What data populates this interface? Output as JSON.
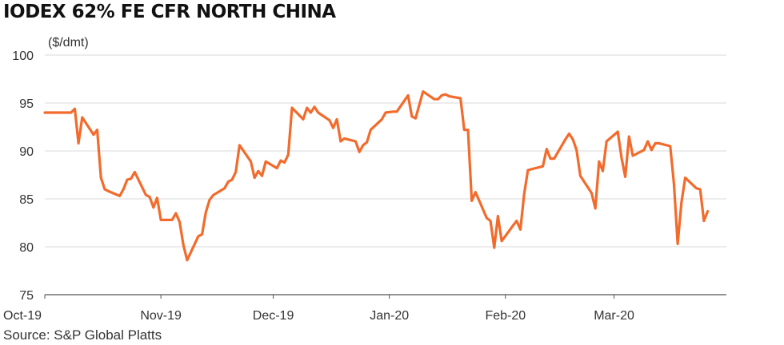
{
  "chart_data": {
    "type": "line",
    "title": "IODEX 62% FE CFR NORTH CHINA",
    "ylabel": "($/dmt)",
    "source": "Source: S&P Global Platts",
    "ylim": [
      75,
      100
    ],
    "yticks": [
      75,
      80,
      85,
      90,
      95,
      100
    ],
    "grid": true,
    "line_color": "#F26B2C",
    "grid_color": "#d9d9d9",
    "xlim": [
      "2019-10-01",
      "2020-03-31"
    ],
    "xticks": [
      {
        "label": "Oct-19",
        "date": "2019-10-01"
      },
      {
        "label": "Nov-19",
        "date": "2019-11-01"
      },
      {
        "label": "Dec-19",
        "date": "2019-12-01"
      },
      {
        "label": "Jan-20",
        "date": "2020-01-01"
      },
      {
        "label": "Feb-20",
        "date": "2020-02-01"
      },
      {
        "label": "Mar-20",
        "date": "2020-03-01"
      }
    ],
    "series": [
      {
        "points": [
          [
            "2019-10-01",
            94.0
          ],
          [
            "2019-10-02",
            94.0
          ],
          [
            "2019-10-04",
            94.0
          ],
          [
            "2019-10-07",
            94.0
          ],
          [
            "2019-10-08",
            94.0
          ],
          [
            "2019-10-09",
            94.4
          ],
          [
            "2019-10-10",
            90.8
          ],
          [
            "2019-10-11",
            93.5
          ],
          [
            "2019-10-14",
            91.7
          ],
          [
            "2019-10-15",
            92.2
          ],
          [
            "2019-10-16",
            87.2
          ],
          [
            "2019-10-17",
            86.0
          ],
          [
            "2019-10-18",
            85.8
          ],
          [
            "2019-10-21",
            85.3
          ],
          [
            "2019-10-22",
            86.0
          ],
          [
            "2019-10-23",
            87.0
          ],
          [
            "2019-10-24",
            87.1
          ],
          [
            "2019-10-25",
            87.8
          ],
          [
            "2019-10-28",
            85.4
          ],
          [
            "2019-10-29",
            85.2
          ],
          [
            "2019-10-30",
            84.1
          ],
          [
            "2019-10-31",
            85.1
          ],
          [
            "2019-11-01",
            82.8
          ],
          [
            "2019-11-04",
            82.8
          ],
          [
            "2019-11-05",
            83.5
          ],
          [
            "2019-11-06",
            82.6
          ],
          [
            "2019-11-07",
            80.2
          ],
          [
            "2019-11-08",
            78.6
          ],
          [
            "2019-11-11",
            81.1
          ],
          [
            "2019-11-12",
            81.3
          ],
          [
            "2019-11-13",
            83.6
          ],
          [
            "2019-11-14",
            84.9
          ],
          [
            "2019-11-15",
            85.4
          ],
          [
            "2019-11-18",
            86.1
          ],
          [
            "2019-11-19",
            86.8
          ],
          [
            "2019-11-20",
            87.0
          ],
          [
            "2019-11-21",
            87.8
          ],
          [
            "2019-11-22",
            90.6
          ],
          [
            "2019-11-25",
            88.9
          ],
          [
            "2019-11-26",
            87.2
          ],
          [
            "2019-11-27",
            87.9
          ],
          [
            "2019-11-28",
            87.4
          ],
          [
            "2019-11-29",
            88.9
          ],
          [
            "2019-12-02",
            88.2
          ],
          [
            "2019-12-03",
            89.0
          ],
          [
            "2019-12-04",
            88.8
          ],
          [
            "2019-12-05",
            89.6
          ],
          [
            "2019-12-06",
            94.5
          ],
          [
            "2019-12-09",
            93.3
          ],
          [
            "2019-12-10",
            94.5
          ],
          [
            "2019-12-11",
            94.0
          ],
          [
            "2019-12-12",
            94.6
          ],
          [
            "2019-12-13",
            94.0
          ],
          [
            "2019-12-16",
            93.2
          ],
          [
            "2019-12-17",
            92.4
          ],
          [
            "2019-12-18",
            93.3
          ],
          [
            "2019-12-19",
            91.0
          ],
          [
            "2019-12-20",
            91.3
          ],
          [
            "2019-12-23",
            91.0
          ],
          [
            "2019-12-24",
            89.9
          ],
          [
            "2019-12-25",
            90.6
          ],
          [
            "2019-12-26",
            90.9
          ],
          [
            "2019-12-27",
            92.2
          ],
          [
            "2019-12-30",
            93.3
          ],
          [
            "2019-12-31",
            94.0
          ],
          [
            "2020-01-02",
            94.1
          ],
          [
            "2020-01-03",
            94.1
          ],
          [
            "2020-01-06",
            95.8
          ],
          [
            "2020-01-07",
            93.6
          ],
          [
            "2020-01-08",
            93.4
          ],
          [
            "2020-01-09",
            94.8
          ],
          [
            "2020-01-10",
            96.2
          ],
          [
            "2020-01-13",
            95.4
          ],
          [
            "2020-01-14",
            95.4
          ],
          [
            "2020-01-15",
            95.8
          ],
          [
            "2020-01-16",
            95.9
          ],
          [
            "2020-01-17",
            95.7
          ],
          [
            "2020-01-20",
            95.5
          ],
          [
            "2020-01-21",
            92.2
          ],
          [
            "2020-01-22",
            92.2
          ],
          [
            "2020-01-23",
            84.8
          ],
          [
            "2020-01-24",
            85.7
          ],
          [
            "2020-01-27",
            83.0
          ],
          [
            "2020-01-28",
            82.7
          ],
          [
            "2020-01-29",
            79.9
          ],
          [
            "2020-01-30",
            83.2
          ],
          [
            "2020-01-31",
            80.6
          ],
          [
            "2020-02-03",
            82.2
          ],
          [
            "2020-02-04",
            82.7
          ],
          [
            "2020-02-05",
            81.8
          ],
          [
            "2020-02-06",
            85.5
          ],
          [
            "2020-02-07",
            88.0
          ],
          [
            "2020-02-10",
            88.3
          ],
          [
            "2020-02-11",
            88.4
          ],
          [
            "2020-02-12",
            90.2
          ],
          [
            "2020-02-13",
            89.2
          ],
          [
            "2020-02-14",
            89.2
          ],
          [
            "2020-02-17",
            91.2
          ],
          [
            "2020-02-18",
            91.8
          ],
          [
            "2020-02-19",
            91.2
          ],
          [
            "2020-02-20",
            90.1
          ],
          [
            "2020-02-21",
            87.4
          ],
          [
            "2020-02-24",
            85.6
          ],
          [
            "2020-02-25",
            84.0
          ],
          [
            "2020-02-26",
            88.9
          ],
          [
            "2020-02-27",
            87.9
          ],
          [
            "2020-02-28",
            91.0
          ],
          [
            "2020-03-02",
            92.0
          ],
          [
            "2020-03-03",
            89.3
          ],
          [
            "2020-03-04",
            87.3
          ],
          [
            "2020-03-05",
            91.5
          ],
          [
            "2020-03-06",
            89.5
          ],
          [
            "2020-03-09",
            90.1
          ],
          [
            "2020-03-10",
            91.0
          ],
          [
            "2020-03-11",
            90.1
          ],
          [
            "2020-03-12",
            90.8
          ],
          [
            "2020-03-13",
            90.8
          ],
          [
            "2020-03-16",
            90.5
          ],
          [
            "2020-03-17",
            86.5
          ],
          [
            "2020-03-18",
            80.3
          ],
          [
            "2020-03-19",
            84.6
          ],
          [
            "2020-03-20",
            87.2
          ],
          [
            "2020-03-23",
            86.1
          ],
          [
            "2020-03-24",
            86.0
          ],
          [
            "2020-03-25",
            82.7
          ],
          [
            "2020-03-26",
            83.7
          ]
        ]
      }
    ]
  }
}
